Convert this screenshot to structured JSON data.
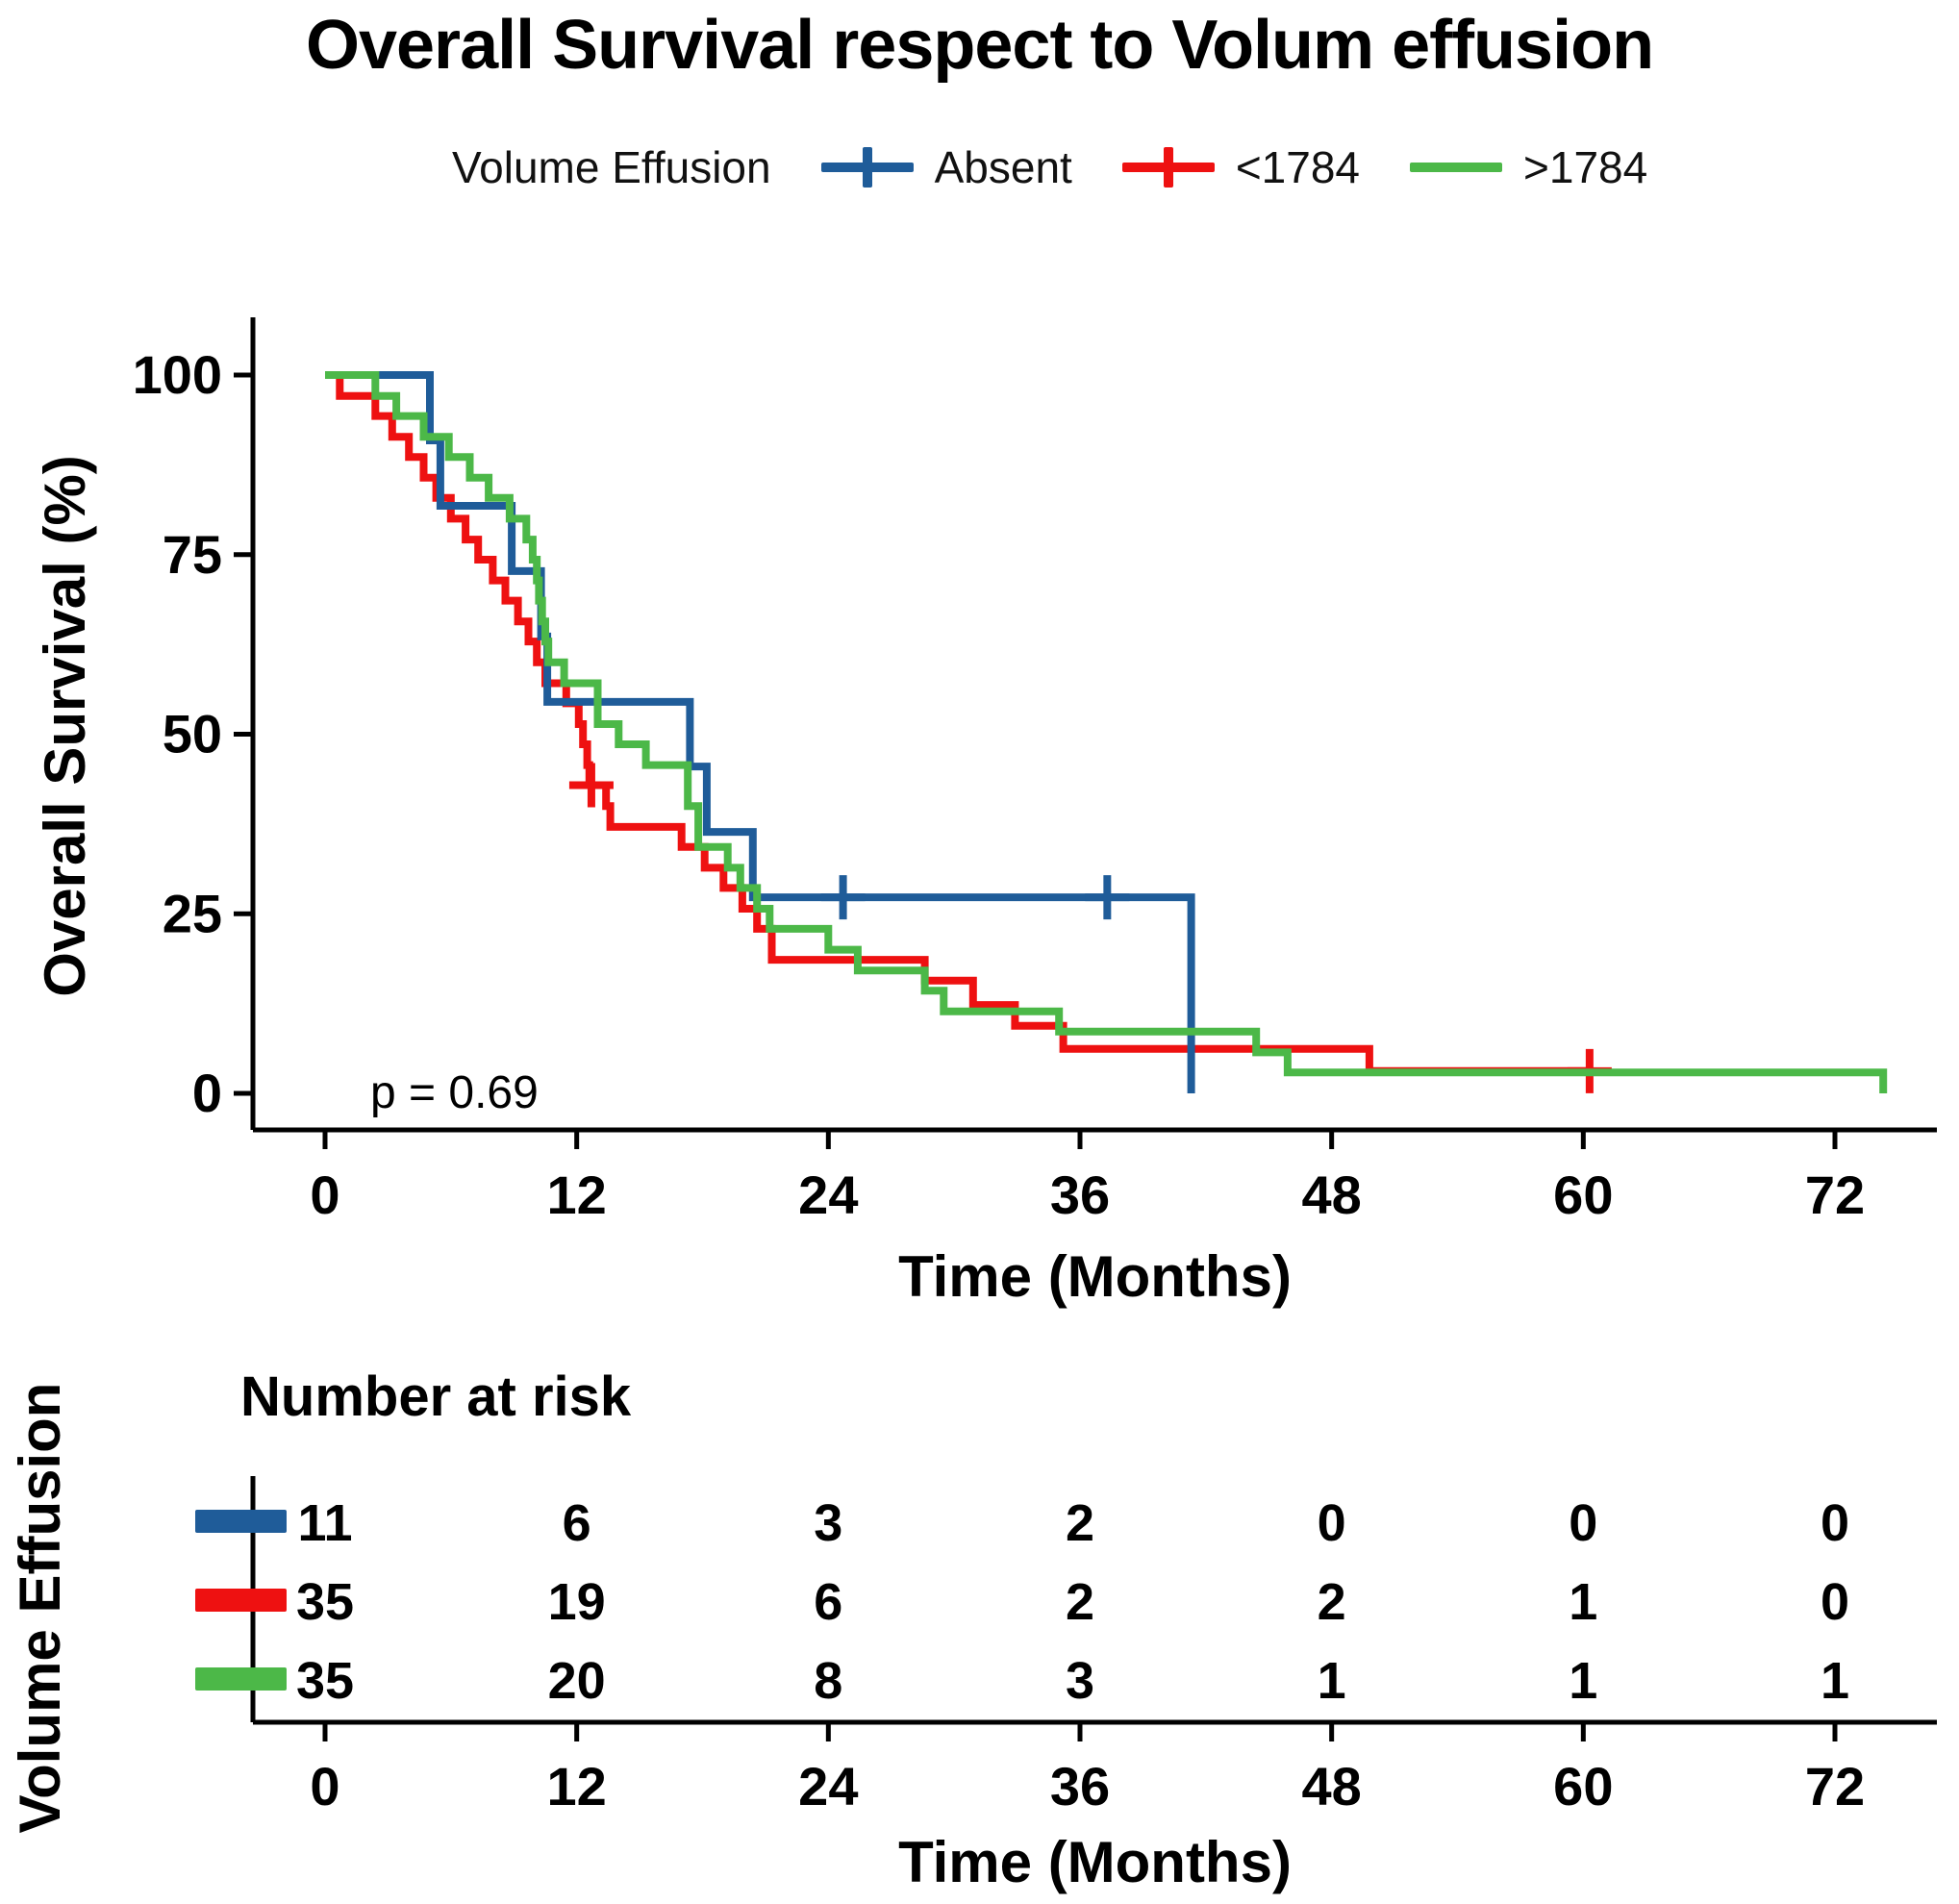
{
  "chart_data": {
    "type": "line",
    "subtype": "kaplan-meier-survival",
    "title": "Overall Survival respect to Volum effusion",
    "legend_title": "Volume Effusion",
    "legend_position": "top",
    "xlabel": "Time (Months)",
    "ylabel": "Overall Survival (%)",
    "xlim": [
      0,
      75
    ],
    "ylim": [
      0,
      100
    ],
    "xticks": [
      0,
      12,
      24,
      36,
      48,
      60,
      72
    ],
    "yticks": [
      0,
      25,
      50,
      75,
      100
    ],
    "grid": false,
    "p_value": "p = 0.69",
    "series": [
      {
        "name": "Absent",
        "color": "#1F5C99",
        "legend_marker": "plus",
        "steps": [
          [
            0,
            100
          ],
          [
            5,
            90.9
          ],
          [
            5.5,
            81.8
          ],
          [
            8.9,
            72.7
          ],
          [
            10.3,
            63.6
          ],
          [
            10.6,
            54.5
          ],
          [
            17.4,
            45.5
          ],
          [
            18.2,
            36.4
          ],
          [
            20.4,
            27.3
          ],
          [
            41.3,
            0
          ]
        ],
        "end": 41.3,
        "censors": [
          [
            24.7,
            27.3
          ],
          [
            37.3,
            27.3
          ]
        ]
      },
      {
        "name": "<1784",
        "color": "#EE1111",
        "legend_marker": "plus",
        "steps": [
          [
            0,
            100
          ],
          [
            0.7,
            97.1
          ],
          [
            2.4,
            94.3
          ],
          [
            3.2,
            91.4
          ],
          [
            4,
            88.6
          ],
          [
            4.7,
            85.7
          ],
          [
            5.3,
            82.9
          ],
          [
            6,
            80
          ],
          [
            6.7,
            77.1
          ],
          [
            7.3,
            74.3
          ],
          [
            8,
            71.4
          ],
          [
            8.6,
            68.6
          ],
          [
            9.2,
            65.7
          ],
          [
            9.7,
            62.9
          ],
          [
            10.1,
            60
          ],
          [
            10.5,
            57.1
          ],
          [
            11.5,
            54.3
          ],
          [
            12.1,
            51.4
          ],
          [
            12.3,
            48.6
          ],
          [
            12.5,
            45.7
          ],
          [
            12.6,
            42.9
          ],
          [
            13.4,
            40
          ],
          [
            13.6,
            37.1
          ],
          [
            17,
            34.3
          ],
          [
            18.1,
            31.4
          ],
          [
            19,
            28.6
          ],
          [
            19.9,
            25.7
          ],
          [
            20.6,
            22.9
          ],
          [
            21.3,
            18.6
          ],
          [
            28.6,
            15.7
          ],
          [
            30.9,
            12.3
          ],
          [
            32.9,
            9.4
          ],
          [
            35.2,
            6.2
          ],
          [
            49.8,
            3.1
          ]
        ],
        "end": 60.3,
        "censors": [
          [
            12.7,
            42.9
          ],
          [
            60.3,
            3.1
          ]
        ]
      },
      {
        "name": ">1784",
        "color": "#4CB848",
        "legend_marker": "line",
        "steps": [
          [
            0,
            100
          ],
          [
            2.4,
            97.1
          ],
          [
            3.4,
            94.3
          ],
          [
            4.7,
            91.4
          ],
          [
            5.9,
            88.6
          ],
          [
            6.9,
            85.7
          ],
          [
            7.8,
            82.9
          ],
          [
            8.8,
            80
          ],
          [
            9.6,
            77.1
          ],
          [
            9.9,
            74.3
          ],
          [
            10.1,
            71.4
          ],
          [
            10.2,
            68.6
          ],
          [
            10.35,
            65.7
          ],
          [
            10.5,
            62.9
          ],
          [
            10.65,
            60
          ],
          [
            11.4,
            57.1
          ],
          [
            13,
            51.4
          ],
          [
            14,
            48.6
          ],
          [
            15.3,
            45.7
          ],
          [
            17.3,
            40
          ],
          [
            17.8,
            34.3
          ],
          [
            19.2,
            31.4
          ],
          [
            19.8,
            28.6
          ],
          [
            20.6,
            25.7
          ],
          [
            21.2,
            22.9
          ],
          [
            24,
            20
          ],
          [
            25.4,
            17.1
          ],
          [
            28.6,
            14.3
          ],
          [
            29.5,
            11.4
          ],
          [
            35,
            8.6
          ],
          [
            44.4,
            5.7
          ],
          [
            45.9,
            2.9
          ],
          [
            74.3,
            0
          ]
        ],
        "end": 74.3,
        "censors": []
      }
    ],
    "risk_table": {
      "title": "Number at risk",
      "axis_label": "Volume Effusion",
      "xlabel": "Time (Months)",
      "times": [
        0,
        12,
        24,
        36,
        48,
        60,
        72
      ],
      "rows": [
        {
          "name": "Absent",
          "color": "#1F5C99",
          "counts": [
            11,
            6,
            3,
            2,
            0,
            0,
            0
          ]
        },
        {
          "name": "<1784",
          "color": "#EE1111",
          "counts": [
            35,
            19,
            6,
            2,
            2,
            1,
            0
          ]
        },
        {
          "name": ">1784",
          "color": "#4CB848",
          "counts": [
            35,
            20,
            8,
            3,
            1,
            1,
            1
          ]
        }
      ]
    }
  }
}
